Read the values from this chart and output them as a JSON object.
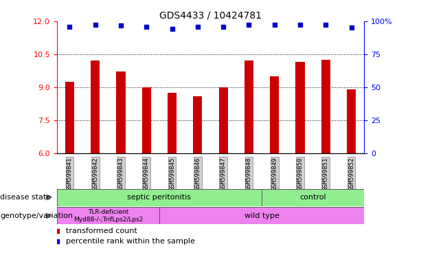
{
  "title": "GDS4433 / 10424781",
  "categories": [
    "GSM599841",
    "GSM599842",
    "GSM599843",
    "GSM599844",
    "GSM599845",
    "GSM599846",
    "GSM599847",
    "GSM599848",
    "GSM599849",
    "GSM599850",
    "GSM599851",
    "GSM599852"
  ],
  "bar_values": [
    9.25,
    10.2,
    9.7,
    9.0,
    8.75,
    8.6,
    9.0,
    10.2,
    9.5,
    10.15,
    10.25,
    8.9
  ],
  "dot_values": [
    11.75,
    11.85,
    11.8,
    11.75,
    11.65,
    11.75,
    11.75,
    11.82,
    11.82,
    11.82,
    11.82,
    11.7
  ],
  "bar_color": "#cc0000",
  "dot_color": "#0000cc",
  "ylim_left": [
    6,
    12
  ],
  "ylim_right": [
    0,
    100
  ],
  "yticks_left": [
    6,
    7.5,
    9,
    10.5,
    12
  ],
  "yticks_right": [
    0,
    25,
    50,
    75,
    100
  ],
  "hlines": [
    7.5,
    9.0,
    10.5
  ],
  "disease_state_labels": [
    "septic peritonitis",
    "control"
  ],
  "disease_state_color": "#90ee90",
  "disease_sep_idx": 8,
  "genotype_labels": [
    "TLR-deficient\nMyd88-/-;TrifLps2/Lps2",
    "wild type"
  ],
  "genotype_color": "#ee82ee",
  "genotype_sep_idx": 4,
  "legend_items": [
    "transformed count",
    "percentile rank within the sample"
  ],
  "legend_colors": [
    "#cc0000",
    "#0000cc"
  ],
  "row_labels": [
    "disease state",
    "genotype/variation"
  ],
  "xtick_bg": "#d0d0d0",
  "background_color": "#ffffff"
}
